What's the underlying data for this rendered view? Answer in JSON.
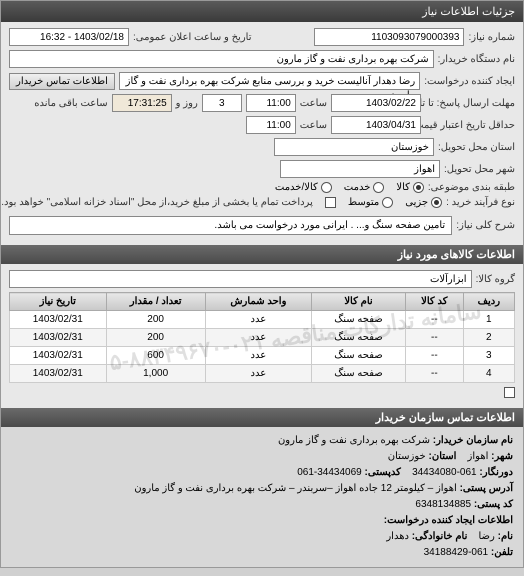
{
  "titlebar": "جزئیات اطلاعات نیاز",
  "form": {
    "req_no_label": "شماره نیاز:",
    "req_no": "1103093079000393",
    "announce_label": "تاریخ و ساعت اعلان عمومی:",
    "announce_value": "1403/02/18 - 16:32",
    "buyer_dev_label": "نام دستگاه خریدار:",
    "buyer_dev": "شرکت بهره برداری نفت و گاز مارون",
    "requester_label": "ایجاد کننده درخواست:",
    "requester": "رضا دهدار آنالیست خرید و بررسی منابع شرکت بهره برداری نفت و گاز مارون",
    "buyer_contact_btn": "اطلاعات تماس خریدار",
    "deadline_send_label": "مهلت ارسال پاسخ: تا تاریخ:",
    "deadline_send_date": "1403/02/22",
    "deadline_send_time_label": "ساعت",
    "deadline_send_time": "11:00",
    "days_label": "روز و",
    "days": "3",
    "remain_label": "ساعت باقی مانده",
    "remain_time": "17:31:25",
    "validity_label": "حداقل تاریخ اعتبار قیمت: تا تاریخ:",
    "validity_date": "1403/04/31",
    "validity_time_label": "ساعت",
    "validity_time": "11:00",
    "province_label": "استان محل تحویل:",
    "province": "خوزستان",
    "city_label": "شهر محل تحویل:",
    "city": "اهواز",
    "category_label": "طبقه بندی موضوعی:",
    "cat_goods": "کالا",
    "cat_service": "خدمت",
    "cat_goods_service": "کالا/خدمت",
    "purchase_type_label": "نوع فرآیند خرید :",
    "pt_minor": "جزیی",
    "pt_medium": "متوسط",
    "pt_note": "پرداخت تمام یا بخشی از مبلغ خرید،از محل \"اسناد خزانه اسلامی\" خواهد بود.",
    "desc_label": "شرح کلی نیاز:",
    "desc_value": "تامین صفحه سنگ و... . ایرانی مورد درخواست می باشد."
  },
  "items_header": "اطلاعات کالاهای مورد نیاز",
  "group_label": "گروه کالا:",
  "group_value": "ابزارآلات",
  "table": {
    "headers": [
      "ردیف",
      "کد کالا",
      "نام کالا",
      "واحد شمارش",
      "تعداد / مقدار",
      "تاریخ نیاز"
    ],
    "rows": [
      [
        "1",
        "--",
        "صفحه سنگ",
        "عدد",
        "200",
        "1403/02/31"
      ],
      [
        "2",
        "--",
        "صفحه سنگ",
        "عدد",
        "200",
        "1403/02/31"
      ],
      [
        "3",
        "--",
        "صفحه سنگ",
        "عدد",
        "600",
        "1403/02/31"
      ],
      [
        "4",
        "--",
        "صفحه سنگ",
        "عدد",
        "1,000",
        "1403/02/31"
      ]
    ]
  },
  "contact_header": "اطلاعات تماس سازمان خریدار",
  "contact": {
    "org_label": "نام سازمان خریدار:",
    "org": "شرکت بهره برداری نفت و گاز مارون",
    "city_label": "شهر:",
    "city": "اهواز",
    "province_label": "استان:",
    "province": "خوزستان",
    "fax_label": "دورنگار:",
    "fax": "061-34434080",
    "postal_label": "کدپستی:",
    "postal": "34434069-061",
    "address_label": "آدرس پستی:",
    "address": "اهواز – کیلومتر 12 جاده اهواز –سربندر – شرکت بهره برداری نفت و گاز مارون",
    "postbox_label": "کد پستی:",
    "postbox": "6348134885",
    "creator_header": "اطلاعات ایجاد کننده درخواست:",
    "name_label": "نام:",
    "name": "رضا",
    "family_label": "نام خانوادگی:",
    "family": "دهدار",
    "phone_label": "تلفن:",
    "phone": "061-34188429"
  },
  "watermark": "سامانه تدارکات مناقصه ۰۲۱-۸۸۳۴۹۶۷۰-۵",
  "colors": {
    "header_bg": "#4a4a4a",
    "body_bg": "#e8e8e8",
    "field_bg": "#ffffff",
    "border": "#888888"
  }
}
